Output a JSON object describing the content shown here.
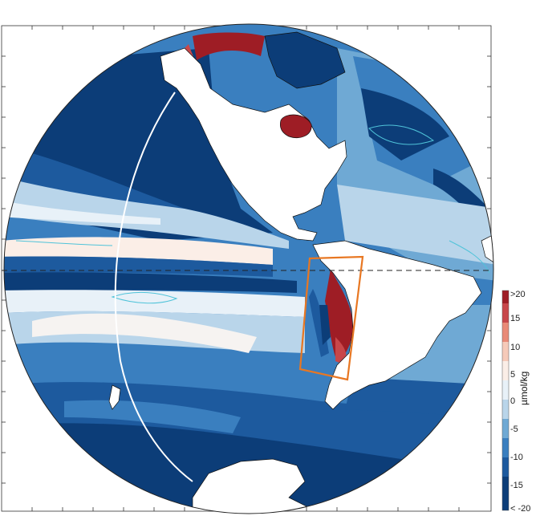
{
  "map": {
    "projection": "orthographic",
    "region": "Americas, eastern Pacific and Atlantic oceans",
    "colorscale": {
      "unit": "µmol/kg",
      "ticks": [
        ">20",
        "15",
        "10",
        "5",
        "0",
        "-5",
        "-10",
        "-15",
        "< -20"
      ],
      "colors": [
        "#9e1d25",
        "#c8474a",
        "#e98a77",
        "#f6cab9",
        "#fbeee7",
        "#e8f1f8",
        "#b9d5ea",
        "#6fa9d4",
        "#3a7fbf",
        "#1d5a9e",
        "#0c3d78"
      ]
    },
    "features": [
      "equator dashed line",
      "meridian white line",
      "orange box off western South America",
      "zero contour lines (cyan)"
    ]
  }
}
